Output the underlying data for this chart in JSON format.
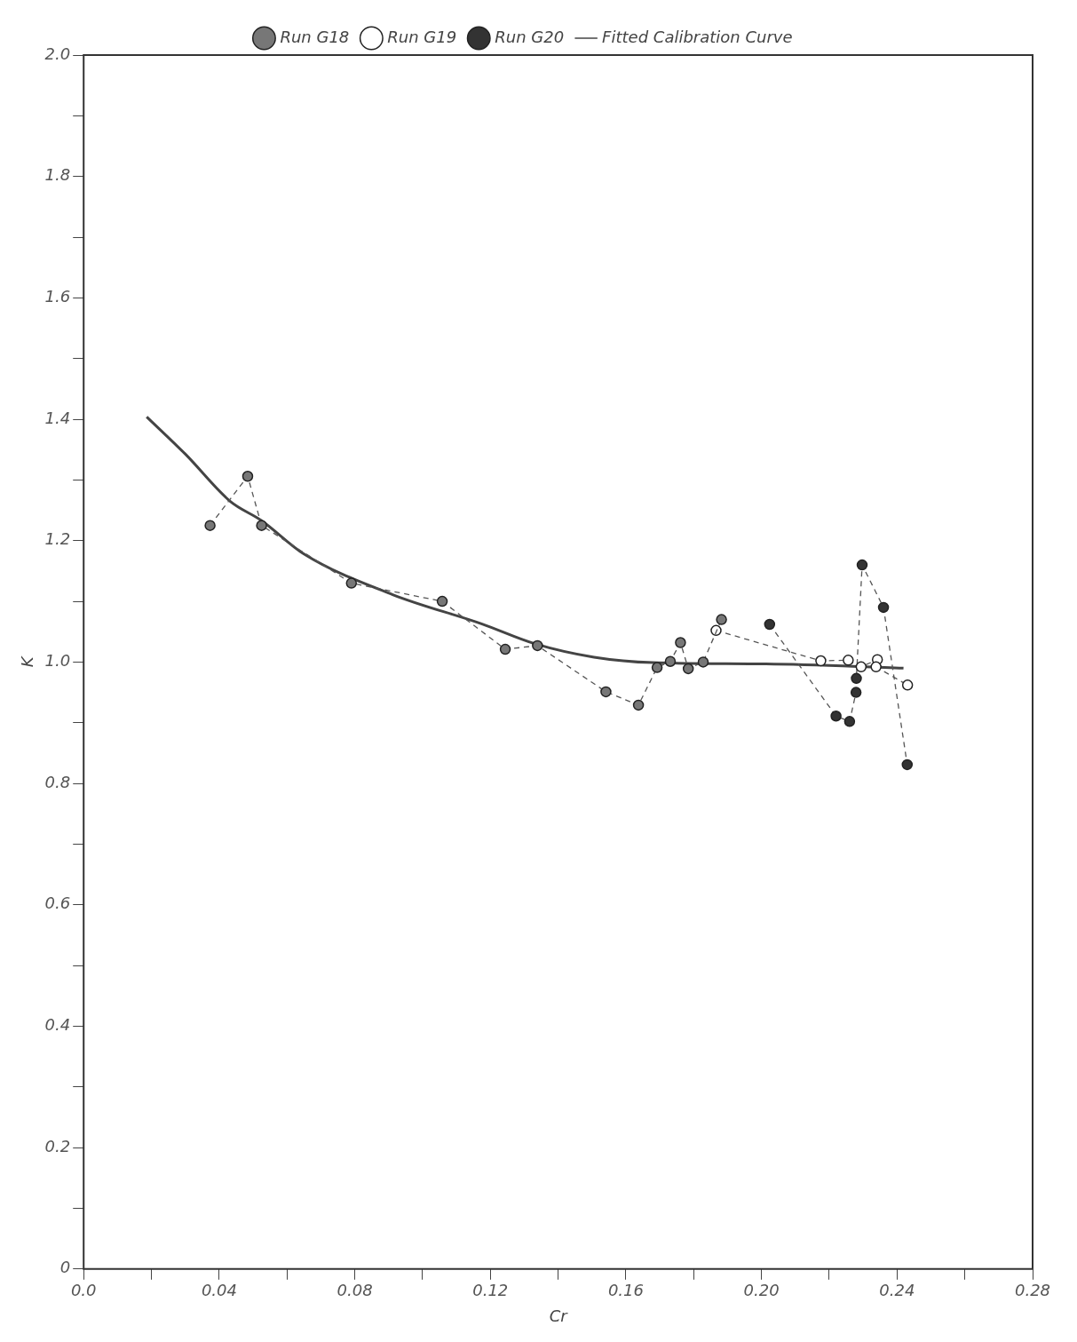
{
  "chart_data": {
    "type": "line",
    "xlabel": "Cr",
    "ylabel": "K",
    "xlim": [
      0,
      0.28
    ],
    "ylim": [
      0,
      2.0
    ],
    "xticks": [
      {
        "value": 0,
        "label": "0.0"
      },
      {
        "value": 0.02,
        "label": null
      },
      0.04,
      {
        "value": 0.06,
        "label": null
      },
      0.08,
      {
        "value": 0.1,
        "label": null
      },
      0.12,
      {
        "value": 0.14,
        "label": null
      },
      0.16,
      {
        "value": 0.18,
        "label": null
      },
      {
        "value": 0.2,
        "label": "0.20"
      },
      {
        "value": 0.22,
        "label": null
      },
      0.24,
      {
        "value": 0.26,
        "label": null
      },
      0.28
    ],
    "yticks": [
      0,
      {
        "value": 0.1,
        "label": null
      },
      0.2,
      {
        "value": 0.3,
        "label": null
      },
      0.4,
      {
        "value": 0.5,
        "label": null
      },
      0.6,
      {
        "value": 0.7,
        "label": null
      },
      0.8,
      {
        "value": 0.9,
        "label": null
      },
      {
        "value": 1,
        "label": "1.0"
      },
      {
        "value": 1.1,
        "label": null
      },
      1.2,
      {
        "value": 1.3,
        "label": null
      },
      1.4,
      {
        "value": 1.5,
        "label": null
      },
      1.6,
      {
        "value": 1.7,
        "label": null
      },
      1.8,
      {
        "value": 1.9,
        "label": null
      },
      {
        "value": 2,
        "label": "2.0"
      }
    ],
    "grid": false,
    "legend": "top",
    "series": [
      {
        "name": "Run G18",
        "color": "#777777",
        "marker": "circle",
        "line_style": "dashed",
        "x": [
          0.0373,
          0.0484,
          0.0525,
          0.079,
          0.1058,
          0.1244,
          0.1339,
          0.1541,
          0.1637,
          0.1692,
          0.1731,
          0.1761,
          0.1784,
          0.1828,
          0.1882
        ],
        "values": [
          1.225,
          1.306,
          1.225,
          1.13,
          1.1,
          1.021,
          1.027,
          0.951,
          0.929,
          0.991,
          1.001,
          1.032,
          0.989,
          1.0,
          1.07
        ]
      },
      {
        "name": "Run G19",
        "color": "#ffffff",
        "marker": "circle",
        "line_style": "dashed",
        "x": [
          0.1866,
          0.2175,
          0.2256,
          0.2294,
          0.2342,
          0.2338,
          0.2431
        ],
        "values": [
          1.052,
          1.002,
          1.003,
          0.992,
          1.004,
          0.992,
          0.962
        ]
      },
      {
        "name": "Run G20",
        "color": "#333333",
        "marker": "circle",
        "line_style": "dashed",
        "x": [
          0.2024,
          0.222,
          0.226,
          0.2279,
          0.228,
          0.2297,
          0.236,
          0.243
        ],
        "values": [
          1.062,
          0.911,
          0.902,
          0.95,
          0.973,
          1.16,
          1.09,
          0.831
        ]
      },
      {
        "name": "Fitted Calibration Curve",
        "color": "#444444",
        "marker": "none",
        "line_style": "solid",
        "x": [
          0.0186,
          0.0301,
          0.0432,
          0.0525,
          0.065,
          0.0912,
          0.1174,
          0.1332,
          0.1506,
          0.168,
          0.2013,
          0.2419
        ],
        "values": [
          1.404,
          1.342,
          1.265,
          1.233,
          1.178,
          1.111,
          1.063,
          1.03,
          1.008,
          0.999,
          0.997,
          0.99
        ]
      }
    ]
  }
}
